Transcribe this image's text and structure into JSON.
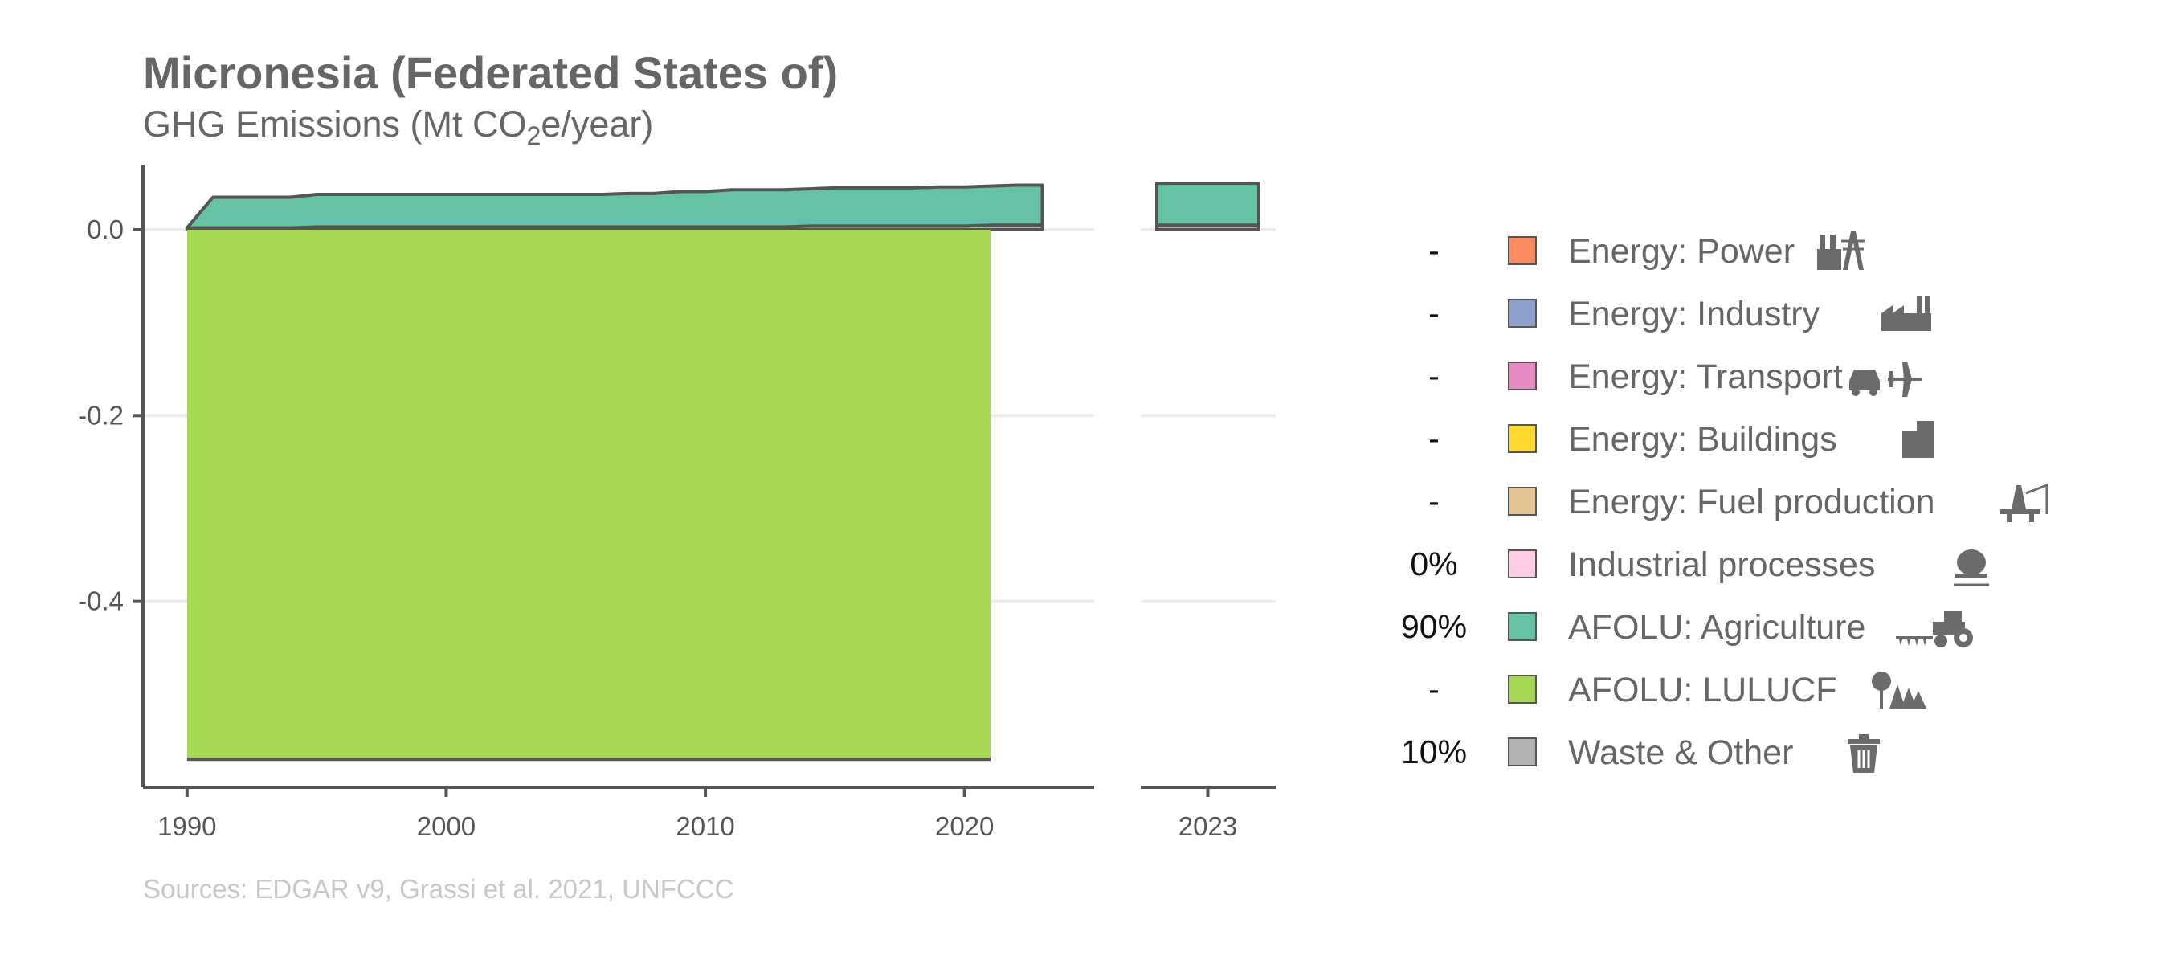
{
  "chart_data": {
    "type": "area",
    "title": "Micronesia (Federated States of)",
    "subtitle": {
      "text_before": "GHG Emissions (Mt CO",
      "subscript": "2",
      "text_after": "e/year)"
    },
    "source": "Sources: EDGAR v9, Grassi et al. 2021, UNFCCC",
    "ylim": [
      -0.6,
      0.07
    ],
    "y_ticks": [
      0.0,
      -0.2,
      -0.4
    ],
    "y_tick_labels": [
      "0.0",
      "-0.2",
      "-0.4"
    ],
    "main_panel": {
      "xlim": [
        1988.3,
        2025
      ],
      "x_ticks": [
        1990,
        2000,
        2010,
        2020
      ],
      "x_tick_labels": [
        "1990",
        "2000",
        "2010",
        "2020"
      ]
    },
    "side_panel": {
      "category": "2023",
      "tick_label": "2023"
    },
    "grid": true,
    "legend_position": "right",
    "x": [
      1990,
      1991,
      1992,
      1993,
      1994,
      1995,
      1996,
      1997,
      1998,
      1999,
      2000,
      2001,
      2002,
      2003,
      2004,
      2005,
      2006,
      2007,
      2008,
      2009,
      2010,
      2011,
      2012,
      2013,
      2014,
      2015,
      2016,
      2017,
      2018,
      2019,
      2020,
      2021,
      2022,
      2023
    ],
    "series": [
      {
        "name": "Waste & Other",
        "color": "#b3b3b3",
        "values": [
          0.002,
          0.002,
          0.002,
          0.002,
          0.002,
          0.003,
          0.003,
          0.003,
          0.003,
          0.003,
          0.003,
          0.003,
          0.003,
          0.003,
          0.003,
          0.003,
          0.003,
          0.003,
          0.003,
          0.003,
          0.003,
          0.003,
          0.003,
          0.003,
          0.004,
          0.004,
          0.004,
          0.004,
          0.004,
          0.004,
          0.004,
          0.005,
          0.005,
          0.005
        ]
      },
      {
        "name": "AFOLU: Agriculture",
        "color": "#66c2a5",
        "values": [
          0.0,
          0.033,
          0.033,
          0.033,
          0.033,
          0.035,
          0.035,
          0.035,
          0.035,
          0.035,
          0.035,
          0.035,
          0.035,
          0.035,
          0.035,
          0.035,
          0.035,
          0.036,
          0.036,
          0.038,
          0.038,
          0.04,
          0.04,
          0.04,
          0.04,
          0.041,
          0.041,
          0.041,
          0.041,
          0.042,
          0.042,
          0.042,
          0.043,
          0.043
        ]
      },
      {
        "name": "AFOLU: LULUCF",
        "color": "#a6d854",
        "values": [
          -0.57,
          -0.57,
          -0.57,
          -0.57,
          -0.57,
          -0.57,
          -0.57,
          -0.57,
          -0.57,
          -0.57,
          -0.57,
          -0.57,
          -0.57,
          -0.57,
          -0.57,
          -0.57,
          -0.57,
          -0.57,
          -0.57,
          -0.57,
          -0.57,
          -0.57,
          -0.57,
          -0.57,
          -0.57,
          -0.57,
          -0.57,
          -0.57,
          -0.57,
          -0.57,
          -0.57,
          -0.57,
          null,
          null
        ]
      }
    ],
    "side_values": {
      "Waste & Other": 0.005,
      "AFOLU: Agriculture": 0.045
    },
    "legend": [
      {
        "pct": "-",
        "label": "Energy: Power",
        "color": "#fc8d62",
        "icon": "power-plant-pylon-icon"
      },
      {
        "pct": "-",
        "label": "Energy: Industry",
        "color": "#8da0cb",
        "icon": "factory-icon"
      },
      {
        "pct": "-",
        "label": "Energy: Transport",
        "color": "#e78ac3",
        "icon": "car-plane-icon"
      },
      {
        "pct": "-",
        "label": "Energy: Buildings",
        "color": "#ffd92f",
        "icon": "buildings-icon"
      },
      {
        "pct": "-",
        "label": "Energy: Fuel production",
        "color": "#e5c494",
        "icon": "oil-rig-icon"
      },
      {
        "pct": "0%",
        "label": "Industrial processes",
        "color": "#fccde5",
        "icon": "cement-mixer-icon"
      },
      {
        "pct": "90%",
        "label": "AFOLU: Agriculture",
        "color": "#66c2a5",
        "icon": "tractor-icon"
      },
      {
        "pct": "-",
        "label": "AFOLU: LULUCF",
        "color": "#a6d854",
        "icon": "trees-icon"
      },
      {
        "pct": "10%",
        "label": "Waste & Other",
        "color": "#b3b3b3",
        "icon": "trash-can-icon"
      }
    ]
  }
}
